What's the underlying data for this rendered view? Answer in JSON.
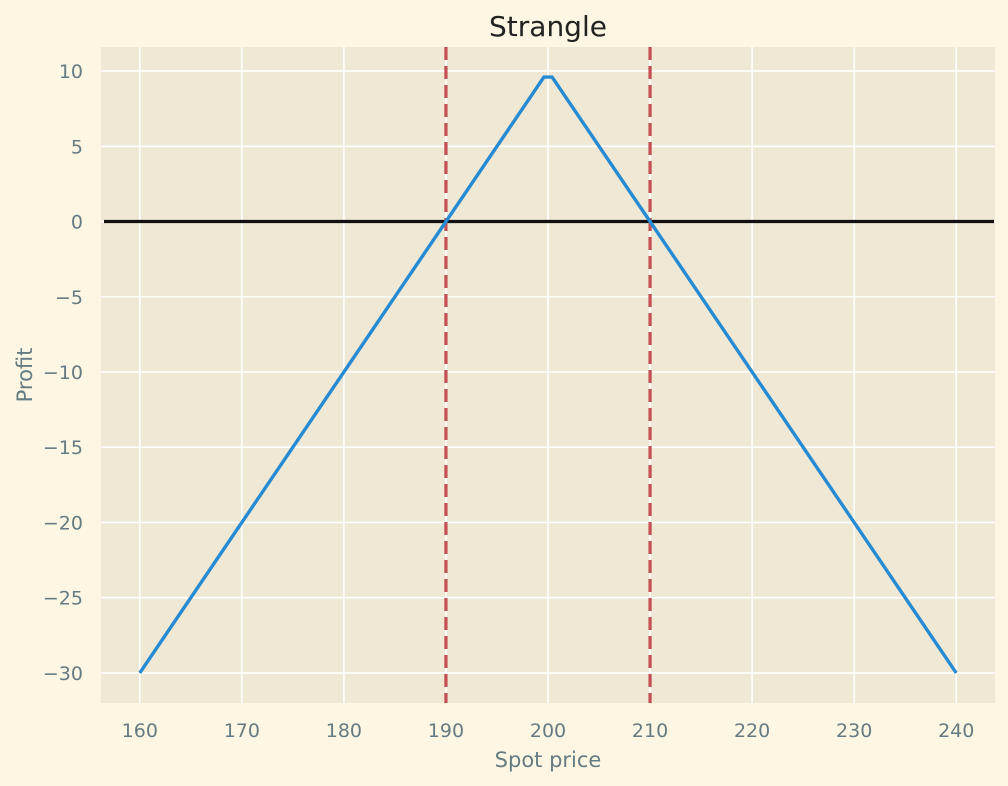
{
  "chart_data": {
    "type": "line",
    "title": "Strangle",
    "xlabel": "Spot price",
    "ylabel": "Profit",
    "xlim": [
      156.2,
      243.8
    ],
    "ylim": [
      -32.0,
      11.6
    ],
    "x_ticks": [
      160,
      170,
      180,
      190,
      200,
      210,
      220,
      230,
      240
    ],
    "y_ticks": [
      10,
      5,
      0,
      -5,
      -10,
      -15,
      -20,
      -25,
      -30
    ],
    "x_tick_labels": [
      "160",
      "170",
      "180",
      "190",
      "200",
      "210",
      "220",
      "230",
      "240"
    ],
    "y_tick_labels": [
      "10",
      "5",
      "0",
      "−5",
      "−10",
      "−15",
      "−20",
      "−25",
      "−30"
    ],
    "grid": true,
    "series": [
      {
        "x": [
          160,
          199.6,
          200.4,
          240
        ],
        "y": [
          -30,
          9.6,
          9.6,
          -30
        ]
      }
    ],
    "reference_lines": {
      "horizontal": [
        0
      ],
      "vertical": [
        190,
        210
      ]
    },
    "colors": {
      "background": "#fdf6e3",
      "plot_area": "#eee8d5",
      "grid": "#ffffff",
      "series": "#268bd2",
      "vertical_lines": "#c44e52",
      "zero_line": "#111111"
    }
  }
}
